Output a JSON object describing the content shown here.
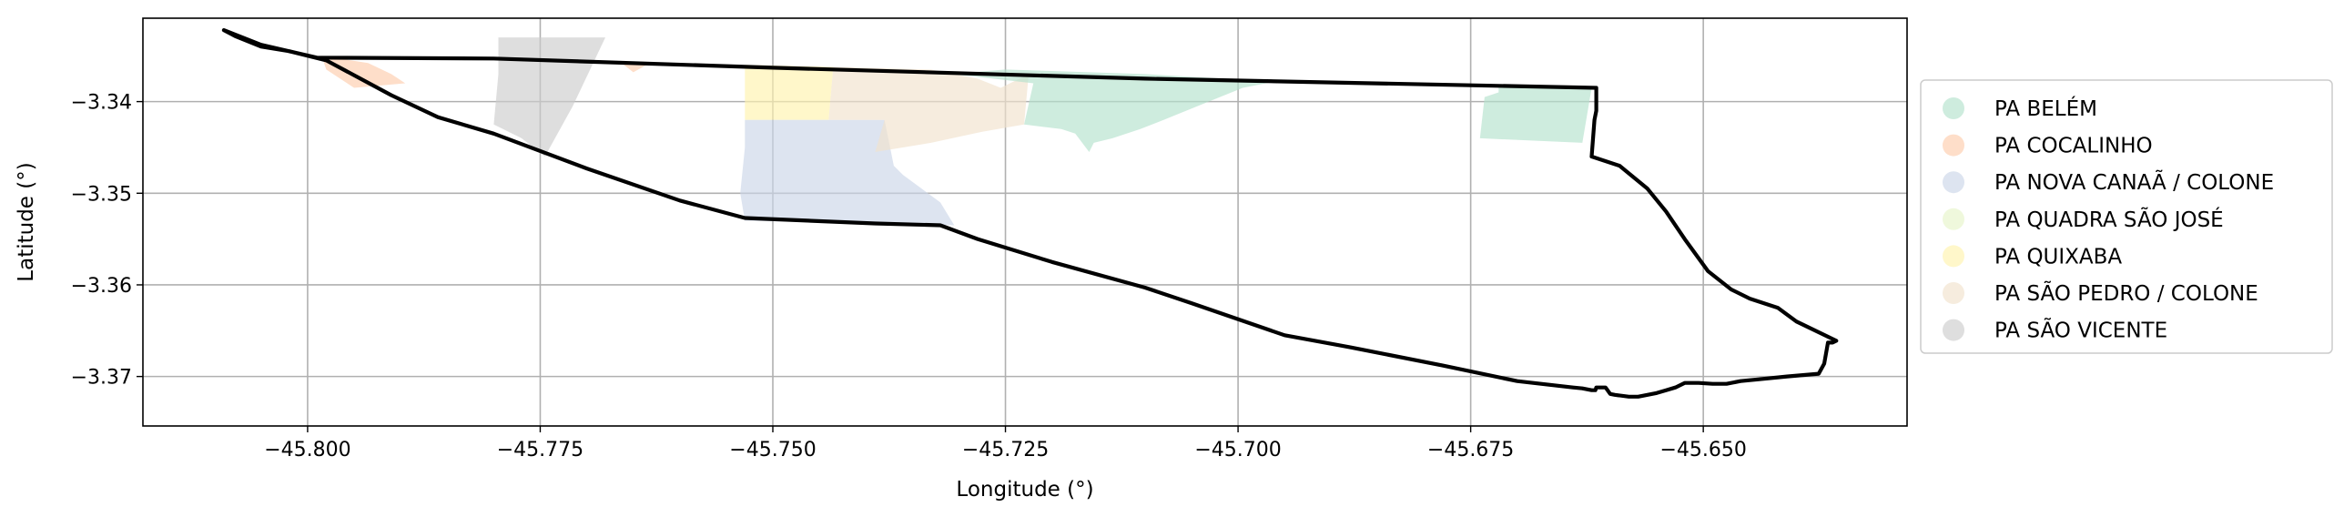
{
  "chart_data": {
    "type": "map",
    "xlabel": "Longitude (°)",
    "ylabel": "Latitude (°)",
    "xlim": [
      -45.8177,
      -45.6281
    ],
    "ylim": [
      -3.3754,
      -3.3309
    ],
    "grid": true,
    "legend_position": "right",
    "x_ticks": [
      {
        "value": -45.8,
        "label": "−45.800"
      },
      {
        "value": -45.775,
        "label": "−45.775"
      },
      {
        "value": -45.75,
        "label": "−45.750"
      },
      {
        "value": -45.725,
        "label": "−45.725"
      },
      {
        "value": -45.7,
        "label": "−45.700"
      },
      {
        "value": -45.675,
        "label": "−45.675"
      },
      {
        "value": -45.65,
        "label": "−45.650"
      }
    ],
    "y_ticks": [
      {
        "value": -3.34,
        "label": "−3.34"
      },
      {
        "value": -3.35,
        "label": "−3.35"
      },
      {
        "value": -3.36,
        "label": "−3.36"
      },
      {
        "value": -3.37,
        "label": "−3.37"
      }
    ],
    "legend": [
      {
        "label": "PA BELÉM",
        "color": "#b3e2cd"
      },
      {
        "label": "PA COCALINHO",
        "color": "#fdcdac"
      },
      {
        "label": "PA NOVA CANAÃ / COLONE",
        "color": "#cbd5e8"
      },
      {
        "label": "PA QUADRA SÃO JOSÉ",
        "color": "#e6f5c9"
      },
      {
        "label": "PA QUIXABA",
        "color": "#fff2ae"
      },
      {
        "label": "PA SÃO PEDRO / COLONE",
        "color": "#f1e2cc"
      },
      {
        "label": "PA SÃO VICENTE",
        "color": "#cccccc"
      }
    ],
    "regions": [
      {
        "label": "PA SÃO VICENTE",
        "color": "#cccccc",
        "polygons": [
          [
            [
              -45.7795,
              -3.333
            ],
            [
              -45.768,
              -3.333
            ],
            [
              -45.7715,
              -3.3405
            ],
            [
              -45.7745,
              -3.346
            ],
            [
              -45.777,
              -3.344
            ],
            [
              -45.78,
              -3.3425
            ],
            [
              -45.7795,
              -3.337
            ]
          ]
        ]
      },
      {
        "label": "PA COCALINHO",
        "color": "#fdcdac",
        "polygons": [
          [
            [
              -45.7985,
              -3.335
            ],
            [
              -45.7935,
              -3.3358
            ],
            [
              -45.791,
              -3.337
            ],
            [
              -45.7895,
              -3.338
            ],
            [
              -45.795,
              -3.3385
            ],
            [
              -45.798,
              -3.3365
            ]
          ],
          [
            [
              -45.7665,
              -3.3356
            ],
            [
              -45.763,
              -3.3357
            ],
            [
              -45.765,
              -3.3368
            ]
          ]
        ]
      },
      {
        "label": "PA QUIXABA",
        "color": "#fff2ae",
        "polygons": [
          [
            [
              -45.753,
              -3.336
            ],
            [
              -45.7435,
              -3.3362
            ],
            [
              -45.744,
              -3.342
            ],
            [
              -45.753,
              -3.342
            ]
          ]
        ]
      },
      {
        "label": "PA NOVA CANAÃ / COLONE",
        "color": "#cbd5e8",
        "polygons": [
          [
            [
              -45.753,
              -3.342
            ],
            [
              -45.738,
              -3.342
            ],
            [
              -45.737,
              -3.347
            ],
            [
              -45.736,
              -3.348
            ],
            [
              -45.734,
              -3.3495
            ],
            [
              -45.732,
              -3.351
            ],
            [
              -45.7305,
              -3.3535
            ],
            [
              -45.753,
              -3.353
            ],
            [
              -45.7535,
              -3.35
            ],
            [
              -45.753,
              -3.345
            ]
          ]
        ]
      },
      {
        "label": "PA SÃO PEDRO / COLONE",
        "color": "#f1e2cc",
        "polygons": [
          [
            [
              -45.7435,
              -3.3362
            ],
            [
              -45.733,
              -3.3365
            ],
            [
              -45.728,
              -3.3375
            ],
            [
              -45.7255,
              -3.3385
            ],
            [
              -45.7225,
              -3.337
            ],
            [
              -45.723,
              -3.3425
            ],
            [
              -45.7275,
              -3.3433
            ],
            [
              -45.733,
              -3.3445
            ],
            [
              -45.739,
              -3.3455
            ],
            [
              -45.738,
              -3.342
            ],
            [
              -45.744,
              -3.342
            ]
          ]
        ]
      },
      {
        "label": "PA BELÉM",
        "color": "#b3e2cd",
        "polygons": [
          [
            [
              -45.731,
              -3.337
            ],
            [
              -45.728,
              -3.3373
            ],
            [
              -45.722,
              -3.338
            ],
            [
              -45.723,
              -3.3425
            ],
            [
              -45.719,
              -3.343
            ],
            [
              -45.7175,
              -3.3435
            ],
            [
              -45.716,
              -3.3455
            ],
            [
              -45.7155,
              -3.3445
            ],
            [
              -45.7135,
              -3.344
            ],
            [
              -45.7105,
              -3.343
            ],
            [
              -45.708,
              -3.342
            ],
            [
              -45.6995,
              -3.3385
            ],
            [
              -45.696,
              -3.3378
            ],
            [
              -45.71,
              -3.337
            ],
            [
              -45.725,
              -3.3365
            ]
          ],
          [
            [
              -45.672,
              -3.3382
            ],
            [
              -45.662,
              -3.3385
            ],
            [
              -45.663,
              -3.3445
            ],
            [
              -45.674,
              -3.344
            ],
            [
              -45.6735,
              -3.3395
            ],
            [
              -45.672,
              -3.339
            ]
          ]
        ]
      }
    ],
    "outline": [
      [
        -45.809,
        -3.3322
      ],
      [
        -45.8077,
        -3.3329
      ],
      [
        -45.805,
        -3.334
      ],
      [
        -45.802,
        -3.3345
      ],
      [
        -45.798,
        -3.3355
      ],
      [
        -45.791,
        -3.3393
      ],
      [
        -45.786,
        -3.3417
      ],
      [
        -45.78,
        -3.3435
      ],
      [
        -45.77,
        -3.3473
      ],
      [
        -45.76,
        -3.3508
      ],
      [
        -45.753,
        -3.3527
      ],
      [
        -45.739,
        -3.3533
      ],
      [
        -45.732,
        -3.3535
      ],
      [
        -45.728,
        -3.355
      ],
      [
        -45.72,
        -3.3575
      ],
      [
        -45.71,
        -3.3603
      ],
      [
        -45.705,
        -3.362
      ],
      [
        -45.695,
        -3.3655
      ],
      [
        -45.688,
        -3.3668
      ],
      [
        -45.678,
        -3.3688
      ],
      [
        -45.67,
        -3.3705
      ],
      [
        -45.664,
        -3.3712
      ],
      [
        -45.663,
        -3.3713
      ],
      [
        -45.662,
        -3.3715
      ],
      [
        -45.6616,
        -3.3715
      ],
      [
        -45.6615,
        -3.3712
      ],
      [
        -45.6605,
        -3.3712
      ],
      [
        -45.66,
        -3.3719
      ],
      [
        -45.6595,
        -3.372
      ],
      [
        -45.658,
        -3.3722
      ],
      [
        -45.657,
        -3.3722
      ],
      [
        -45.656,
        -3.372
      ],
      [
        -45.655,
        -3.3718
      ],
      [
        -45.654,
        -3.3715
      ],
      [
        -45.653,
        -3.3712
      ],
      [
        -45.652,
        -3.3707
      ],
      [
        -45.6505,
        -3.3707
      ],
      [
        -45.649,
        -3.3708
      ],
      [
        -45.6475,
        -3.3708
      ],
      [
        -45.646,
        -3.3705
      ],
      [
        -45.644,
        -3.3703
      ],
      [
        -45.641,
        -3.37
      ],
      [
        -45.6376,
        -3.3697
      ],
      [
        -45.637,
        -3.3686
      ],
      [
        -45.6366,
        -3.3663
      ],
      [
        -45.6361,
        -3.3663
      ],
      [
        -45.6357,
        -3.3661
      ],
      [
        -45.64,
        -3.364
      ],
      [
        -45.642,
        -3.3625
      ],
      [
        -45.645,
        -3.3615
      ],
      [
        -45.647,
        -3.3605
      ],
      [
        -45.6495,
        -3.3585
      ],
      [
        -45.652,
        -3.355
      ],
      [
        -45.654,
        -3.352
      ],
      [
        -45.656,
        -3.3495
      ],
      [
        -45.659,
        -3.347
      ],
      [
        -45.662,
        -3.346
      ],
      [
        -45.6617,
        -3.342
      ],
      [
        -45.6615,
        -3.341
      ],
      [
        -45.6615,
        -3.3385
      ],
      [
        -45.71,
        -3.3375
      ],
      [
        -45.75,
        -3.3363
      ],
      [
        -45.78,
        -3.3353
      ],
      [
        -45.799,
        -3.3352
      ],
      [
        -45.805,
        -3.3338
      ],
      [
        -45.809,
        -3.3322
      ]
    ]
  }
}
